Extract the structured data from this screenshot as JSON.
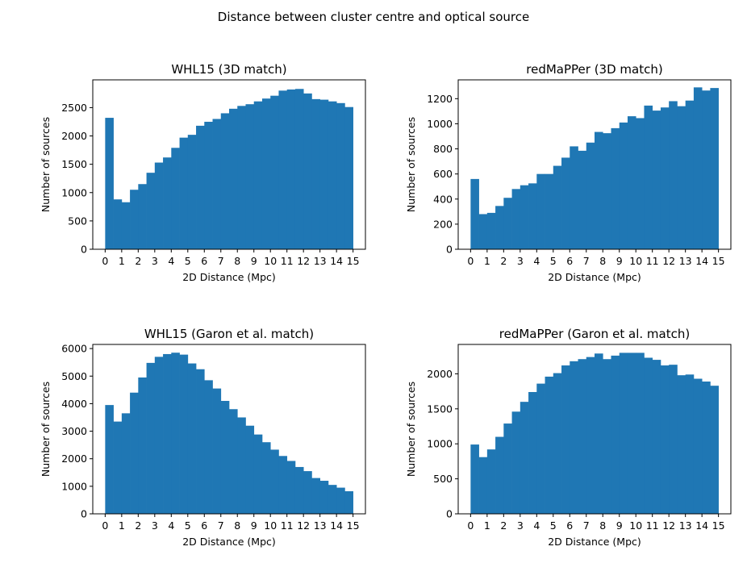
{
  "figure": {
    "title": "Distance between cluster centre and optical source"
  },
  "colors": {
    "bar": "#1f77b4",
    "axis": "#000000",
    "background": "#ffffff"
  },
  "chart_data": [
    {
      "type": "bar",
      "title": "WHL15 (3D match)",
      "xlabel": "2D Distance (Mpc)",
      "ylabel": "Number of sources",
      "xlim": [
        -0.75,
        15.75
      ],
      "ylim": [
        0,
        2990
      ],
      "xticks": [
        0,
        1,
        2,
        3,
        4,
        5,
        6,
        7,
        8,
        9,
        10,
        11,
        12,
        13,
        14,
        15
      ],
      "yticks": [
        0,
        500,
        1000,
        1500,
        2000,
        2500
      ],
      "bin_edges": [
        0,
        0.5,
        1,
        1.5,
        2,
        2.5,
        3,
        3.5,
        4,
        4.5,
        5,
        5.5,
        6,
        6.5,
        7,
        7.5,
        8,
        8.5,
        9,
        9.5,
        10,
        10.5,
        11,
        11.5,
        12,
        12.5,
        13,
        13.5,
        14,
        14.5,
        15
      ],
      "values": [
        2320,
        880,
        830,
        1050,
        1150,
        1350,
        1530,
        1620,
        1790,
        1970,
        2020,
        2180,
        2250,
        2300,
        2400,
        2480,
        2530,
        2560,
        2610,
        2660,
        2710,
        2800,
        2820,
        2830,
        2750,
        2650,
        2640,
        2610,
        2580,
        2510
      ],
      "grid": false,
      "legend": "none"
    },
    {
      "type": "bar",
      "title": "redMaPPer (3D match)",
      "xlabel": "2D Distance (Mpc)",
      "ylabel": "Number of sources",
      "xlim": [
        -0.75,
        15.75
      ],
      "ylim": [
        0,
        1350
      ],
      "xticks": [
        0,
        1,
        2,
        3,
        4,
        5,
        6,
        7,
        8,
        9,
        10,
        11,
        12,
        13,
        14,
        15
      ],
      "yticks": [
        0,
        200,
        400,
        600,
        800,
        1000,
        1200
      ],
      "bin_edges": [
        0,
        0.5,
        1,
        1.5,
        2,
        2.5,
        3,
        3.5,
        4,
        4.5,
        5,
        5.5,
        6,
        6.5,
        7,
        7.5,
        8,
        8.5,
        9,
        9.5,
        10,
        10.5,
        11,
        11.5,
        12,
        12.5,
        13,
        13.5,
        14,
        14.5,
        15
      ],
      "values": [
        560,
        280,
        290,
        345,
        410,
        480,
        510,
        525,
        600,
        600,
        665,
        730,
        820,
        785,
        850,
        935,
        925,
        965,
        1010,
        1060,
        1045,
        1145,
        1105,
        1130,
        1180,
        1140,
        1185,
        1290,
        1265,
        1285
      ],
      "grid": false,
      "legend": "none"
    },
    {
      "type": "bar",
      "title": "WHL15 (Garon et al. match)",
      "xlabel": "2D Distance (Mpc)",
      "ylabel": "Number of sources",
      "xlim": [
        -0.75,
        15.75
      ],
      "ylim": [
        0,
        6150
      ],
      "xticks": [
        0,
        1,
        2,
        3,
        4,
        5,
        6,
        7,
        8,
        9,
        10,
        11,
        12,
        13,
        14,
        15
      ],
      "yticks": [
        0,
        1000,
        2000,
        3000,
        4000,
        5000,
        6000
      ],
      "bin_edges": [
        0,
        0.5,
        1,
        1.5,
        2,
        2.5,
        3,
        3.5,
        4,
        4.5,
        5,
        5.5,
        6,
        6.5,
        7,
        7.5,
        8,
        8.5,
        9,
        9.5,
        10,
        10.5,
        11,
        11.5,
        12,
        12.5,
        13,
        13.5,
        14,
        14.5,
        15
      ],
      "values": [
        3950,
        3350,
        3650,
        4400,
        4950,
        5480,
        5700,
        5800,
        5850,
        5780,
        5460,
        5250,
        4850,
        4550,
        4100,
        3800,
        3500,
        3200,
        2880,
        2600,
        2330,
        2100,
        1920,
        1700,
        1550,
        1300,
        1200,
        1050,
        950,
        820
      ],
      "grid": false,
      "legend": "none"
    },
    {
      "type": "bar",
      "title": "redMaPPer (Garon et al. match)",
      "xlabel": "2D Distance (Mpc)",
      "ylabel": "Number of sources",
      "xlim": [
        -0.75,
        15.75
      ],
      "ylim": [
        0,
        2420
      ],
      "xticks": [
        0,
        1,
        2,
        3,
        4,
        5,
        6,
        7,
        8,
        9,
        10,
        11,
        12,
        13,
        14,
        15
      ],
      "yticks": [
        0,
        500,
        1000,
        1500,
        2000
      ],
      "bin_edges": [
        0,
        0.5,
        1,
        1.5,
        2,
        2.5,
        3,
        3.5,
        4,
        4.5,
        5,
        5.5,
        6,
        6.5,
        7,
        7.5,
        8,
        8.5,
        9,
        9.5,
        10,
        10.5,
        11,
        11.5,
        12,
        12.5,
        13,
        13.5,
        14,
        14.5,
        15
      ],
      "values": [
        990,
        810,
        920,
        1100,
        1290,
        1460,
        1600,
        1740,
        1860,
        1960,
        2010,
        2120,
        2180,
        2210,
        2240,
        2290,
        2210,
        2260,
        2300,
        2300,
        2300,
        2230,
        2200,
        2120,
        2130,
        1980,
        1990,
        1930,
        1890,
        1830
      ],
      "grid": false,
      "legend": "none"
    }
  ]
}
